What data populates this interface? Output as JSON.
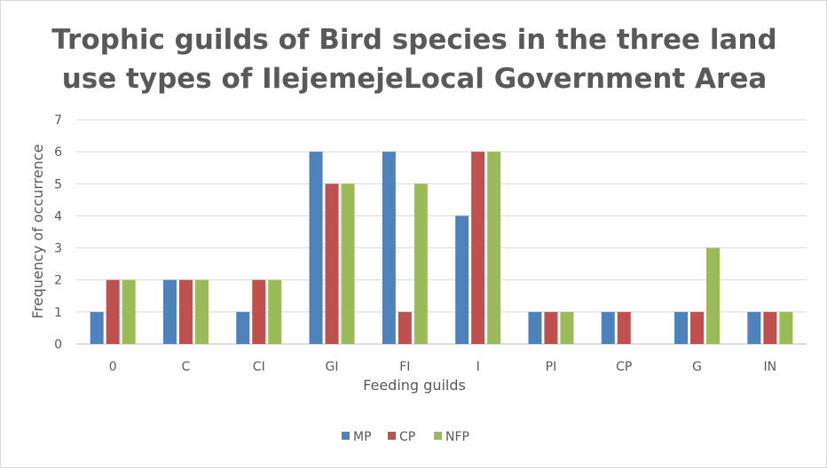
{
  "chart_data": {
    "type": "bar",
    "title_lines": [
      "Trophic guilds of Bird species in the three land",
      "use types of IlejemejeLocal Government Area"
    ],
    "xlabel": "Feeding guilds",
    "ylabel": "Frequency of occurrence",
    "ylim": [
      0,
      7
    ],
    "yticks": [
      0,
      1,
      2,
      3,
      4,
      5,
      6,
      7
    ],
    "grid": true,
    "legend_position": "bottom",
    "categories": [
      "0",
      "C",
      "CI",
      "GI",
      "FI",
      "I",
      "PI",
      "CP",
      "G",
      "IN"
    ],
    "series": [
      {
        "name": "MP",
        "color": "#4f81bd",
        "values": [
          1,
          2,
          1,
          6,
          6,
          4,
          1,
          1,
          1,
          1
        ]
      },
      {
        "name": "CP",
        "color": "#c0504d",
        "values": [
          2,
          2,
          2,
          5,
          1,
          6,
          1,
          1,
          1,
          1
        ]
      },
      {
        "name": "NFP",
        "color": "#9bbb59",
        "values": [
          2,
          2,
          2,
          5,
          5,
          6,
          1,
          0,
          3,
          1
        ]
      }
    ]
  }
}
